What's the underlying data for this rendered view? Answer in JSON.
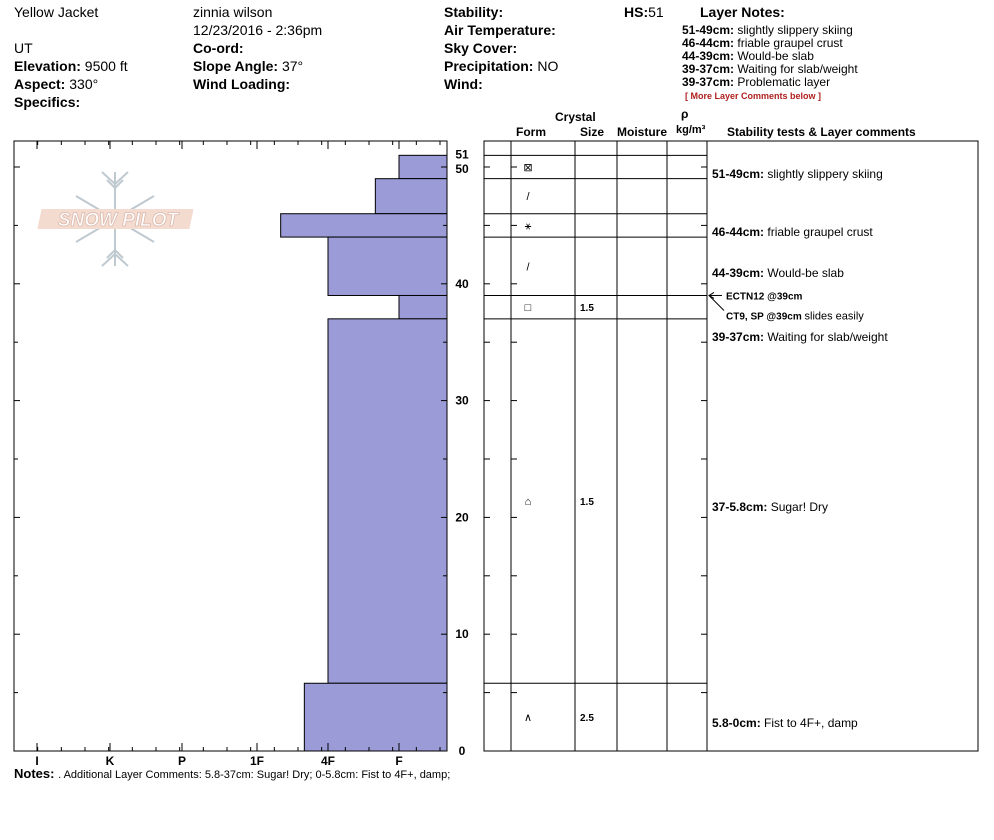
{
  "header": {
    "location": "Yellow Jacket",
    "state": "UT",
    "elevation_label": "Elevation:",
    "elevation_value": "9500 ft",
    "aspect_label": "Aspect:",
    "aspect_value": "330°",
    "specifics_label": "Specifics:",
    "observer": "zinnia wilson",
    "datetime": "12/23/2016 - 2:36pm",
    "coord_label": "Co-ord:",
    "slope_label": "Slope Angle:",
    "slope_value": "37°",
    "wind_loading_label": "Wind Loading:",
    "stability_label": "Stability:",
    "air_temp_label": "Air Temperature:",
    "sky_cover_label": "Sky Cover:",
    "precip_label": "Precipitation:",
    "precip_value": "NO",
    "wind_label": "Wind:",
    "hs_label": "HS:",
    "hs_value": "51",
    "layer_notes_title": "Layer Notes:",
    "layer_notes": [
      {
        "range": "51-49cm:",
        "text": "slightly slippery skiing"
      },
      {
        "range": "46-44cm:",
        "text": "friable graupel crust"
      },
      {
        "range": "44-39cm:",
        "text": "Would-be slab"
      },
      {
        "range": "39-37cm:",
        "text": "Waiting for slab/weight"
      },
      {
        "range": "39-37cm:",
        "text": "Problematic layer"
      }
    ],
    "more_comments": "[ More Layer Comments below ]"
  },
  "logo_text": "SNOW PILOT",
  "column_headers": {
    "crystal": "Crystal",
    "form": "Form",
    "size": "Size",
    "moisture": "Moisture",
    "rho": "ρ",
    "density_unit": "kg/m³",
    "comments": "Stability tests & Layer comments"
  },
  "hardness_labels": [
    "I",
    "K",
    "P",
    "1F",
    "4F",
    "F"
  ],
  "depth_labels": [
    "51",
    "50",
    "40",
    "30",
    "20",
    "10",
    "0"
  ],
  "chart_data": {
    "type": "bar",
    "orientation": "horizontal",
    "ylabel": "",
    "ylim": [
      0,
      51
    ],
    "hardness_scale": [
      "I",
      "K",
      "P",
      "1F",
      "4F",
      "F"
    ],
    "layers": [
      {
        "top": 51,
        "bottom": 49,
        "hardness": "F"
      },
      {
        "top": 49,
        "bottom": 46,
        "hardness": "F+"
      },
      {
        "top": 46,
        "bottom": 44,
        "hardness": "1F-"
      },
      {
        "top": 44,
        "bottom": 39,
        "hardness": "4F"
      },
      {
        "top": 39,
        "bottom": 37,
        "hardness": "F"
      },
      {
        "top": 37,
        "bottom": 5.8,
        "hardness": "4F"
      },
      {
        "top": 5.8,
        "bottom": 0,
        "hardness": "4F+"
      }
    ]
  },
  "crystal_layers": [
    {
      "top": 51,
      "bottom": 49,
      "form": "⊠",
      "size": ""
    },
    {
      "top": 49,
      "bottom": 46,
      "form": "/",
      "size": ""
    },
    {
      "top": 46,
      "bottom": 44,
      "form": "⚹",
      "size": ""
    },
    {
      "top": 44,
      "bottom": 39,
      "form": "/",
      "size": ""
    },
    {
      "top": 39,
      "bottom": 37,
      "form": "□",
      "size": "1.5"
    },
    {
      "top": 37,
      "bottom": 5.8,
      "form": "⌂",
      "size": "1.5"
    },
    {
      "top": 5.8,
      "bottom": 0,
      "form": "∧",
      "size": "2.5"
    }
  ],
  "layer_comments": [
    {
      "range": "51-49cm:",
      "text": "slightly slippery skiing"
    },
    {
      "range": "46-44cm:",
      "text": "friable graupel crust"
    },
    {
      "range": "44-39cm:",
      "text": "Would-be slab"
    },
    {
      "range": "39-37cm:",
      "text": "Waiting for slab/weight"
    },
    {
      "range": "37-5.8cm:",
      "text": "Sugar! Dry"
    },
    {
      "range": "5.8-0cm:",
      "text": "Fist to 4F+, damp"
    }
  ],
  "stability_tests": [
    {
      "label": "ECTN12 @39cm",
      "extra": ""
    },
    {
      "label": "CT9, SP @39cm",
      "extra": "slides easily"
    }
  ],
  "notes_label": "Notes:",
  "notes_text": ". Additional Layer Comments: 5.8-37cm: Sugar! Dry; 0-5.8cm: Fist to 4F+, damp;"
}
